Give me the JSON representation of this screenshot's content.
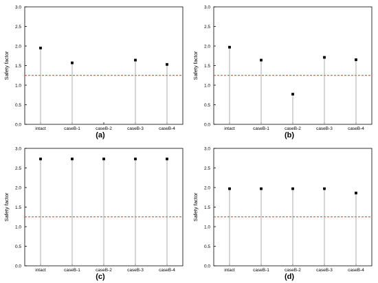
{
  "chart_data": [
    {
      "type": "scatter",
      "panel_label": "(a)",
      "ylabel": "Safety factor",
      "categories": [
        "intact",
        "caseB-1",
        "caseB-2",
        "caseB-3",
        "caseB-4"
      ],
      "values": [
        1.95,
        1.57,
        null,
        1.64,
        1.53
      ],
      "ylim": [
        0.0,
        3.0
      ],
      "yticks": [
        "0.0",
        "0.5",
        "1.0",
        "1.5",
        "2.0",
        "2.5",
        "3.0"
      ],
      "reference_line": 1.25,
      "marker_color": "#000000",
      "stem_color": "#9a9a9a",
      "reference_color": "#d9342b"
    },
    {
      "type": "scatter",
      "panel_label": "(b)",
      "ylabel": "Safety factor",
      "categories": [
        "intact",
        "caseB-1",
        "caseB-2",
        "caseB-3",
        "caseB-4"
      ],
      "values": [
        1.97,
        1.64,
        0.77,
        1.71,
        1.65
      ],
      "ylim": [
        0.0,
        3.0
      ],
      "yticks": [
        "0.0",
        "0.5",
        "1.0",
        "1.5",
        "2.0",
        "2.5",
        "3.0"
      ],
      "reference_line": 1.25,
      "marker_color": "#000000",
      "stem_color": "#9a9a9a",
      "reference_color": "#d9342b"
    },
    {
      "type": "scatter",
      "panel_label": "(c)",
      "ylabel": "Safety factor",
      "categories": [
        "intact",
        "caseB-1",
        "caseB-2",
        "caseB-3",
        "caseB-4"
      ],
      "values": [
        2.73,
        2.73,
        2.73,
        2.73,
        2.73
      ],
      "ylim": [
        0.0,
        3.0
      ],
      "yticks": [
        "0.0",
        "0.5",
        "1.0",
        "1.5",
        "2.0",
        "2.5",
        "3.0"
      ],
      "reference_line": 1.25,
      "marker_color": "#000000",
      "stem_color": "#9a9a9a",
      "reference_color": "#d9342b"
    },
    {
      "type": "scatter",
      "panel_label": "(d)",
      "ylabel": "Safety factor",
      "categories": [
        "intact",
        "caseB-1",
        "caseB-2",
        "caseB-3",
        "caseB-4"
      ],
      "values": [
        1.97,
        1.97,
        1.97,
        1.97,
        1.86
      ],
      "ylim": [
        0.0,
        3.0
      ],
      "yticks": [
        "0.0",
        "0.5",
        "1.0",
        "1.5",
        "2.0",
        "2.5",
        "3.0"
      ],
      "reference_line": 1.25,
      "marker_color": "#000000",
      "stem_color": "#9a9a9a",
      "reference_color": "#d9342b"
    }
  ]
}
